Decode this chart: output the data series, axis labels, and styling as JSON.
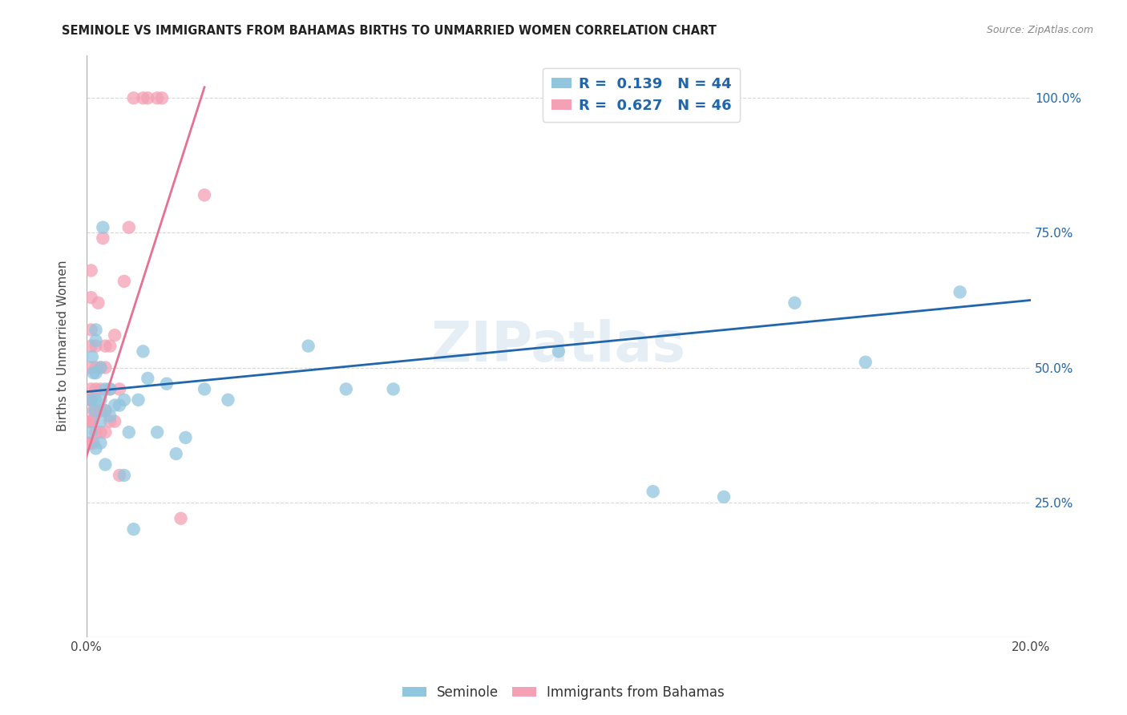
{
  "title": "SEMINOLE VS IMMIGRANTS FROM BAHAMAS BIRTHS TO UNMARRIED WOMEN CORRELATION CHART",
  "source": "Source: ZipAtlas.com",
  "ylabel": "Births to Unmarried Women",
  "xlim": [
    0.0,
    0.2
  ],
  "ylim": [
    0.0,
    1.08
  ],
  "ytick_labels": [
    "25.0%",
    "50.0%",
    "75.0%",
    "100.0%"
  ],
  "ytick_values": [
    0.25,
    0.5,
    0.75,
    1.0
  ],
  "legend1_label": "R =  0.139   N = 44",
  "legend2_label": "R =  0.627   N = 46",
  "legend_bottom": [
    "Seminole",
    "Immigrants from Bahamas"
  ],
  "blue_color": "#92c5de",
  "pink_color": "#f4a0b5",
  "blue_line_color": "#2166ac",
  "pink_line_color": "#e87090",
  "watermark": "ZIPatlas",
  "blue_scatter_x": [
    0.001,
    0.001,
    0.0012,
    0.0015,
    0.0018,
    0.002,
    0.002,
    0.002,
    0.002,
    0.002,
    0.003,
    0.003,
    0.003,
    0.003,
    0.0035,
    0.004,
    0.004,
    0.004,
    0.005,
    0.005,
    0.006,
    0.007,
    0.008,
    0.008,
    0.009,
    0.01,
    0.011,
    0.012,
    0.013,
    0.015,
    0.017,
    0.019,
    0.021,
    0.025,
    0.03,
    0.047,
    0.055,
    0.065,
    0.1,
    0.12,
    0.135,
    0.15,
    0.165,
    0.185
  ],
  "blue_scatter_y": [
    0.38,
    0.44,
    0.52,
    0.49,
    0.42,
    0.35,
    0.44,
    0.49,
    0.55,
    0.57,
    0.36,
    0.4,
    0.44,
    0.5,
    0.76,
    0.32,
    0.42,
    0.46,
    0.41,
    0.46,
    0.43,
    0.43,
    0.3,
    0.44,
    0.38,
    0.2,
    0.44,
    0.53,
    0.48,
    0.38,
    0.47,
    0.34,
    0.37,
    0.46,
    0.44,
    0.54,
    0.46,
    0.46,
    0.53,
    0.27,
    0.26,
    0.62,
    0.51,
    0.64
  ],
  "pink_scatter_x": [
    0.0005,
    0.0005,
    0.0008,
    0.001,
    0.001,
    0.001,
    0.001,
    0.001,
    0.001,
    0.001,
    0.001,
    0.001,
    0.0012,
    0.0015,
    0.0015,
    0.002,
    0.002,
    0.002,
    0.002,
    0.002,
    0.0025,
    0.003,
    0.003,
    0.003,
    0.003,
    0.0035,
    0.004,
    0.004,
    0.004,
    0.004,
    0.005,
    0.005,
    0.005,
    0.006,
    0.006,
    0.007,
    0.007,
    0.008,
    0.009,
    0.01,
    0.012,
    0.013,
    0.015,
    0.016,
    0.02,
    0.025
  ],
  "pink_scatter_y": [
    0.36,
    0.4,
    0.44,
    0.36,
    0.4,
    0.44,
    0.46,
    0.5,
    0.54,
    0.57,
    0.63,
    0.68,
    0.4,
    0.36,
    0.42,
    0.38,
    0.42,
    0.46,
    0.5,
    0.54,
    0.62,
    0.38,
    0.42,
    0.46,
    0.5,
    0.74,
    0.38,
    0.42,
    0.5,
    0.54,
    0.4,
    0.46,
    0.54,
    0.4,
    0.56,
    0.3,
    0.46,
    0.66,
    0.76,
    1.0,
    1.0,
    1.0,
    1.0,
    1.0,
    0.22,
    0.82
  ],
  "blue_line_x": [
    0.0,
    0.2
  ],
  "blue_line_y": [
    0.455,
    0.625
  ],
  "pink_line_x": [
    0.0,
    0.025
  ],
  "pink_line_y": [
    0.335,
    1.02
  ],
  "background_color": "#ffffff",
  "grid_color": "#d8d8d8"
}
